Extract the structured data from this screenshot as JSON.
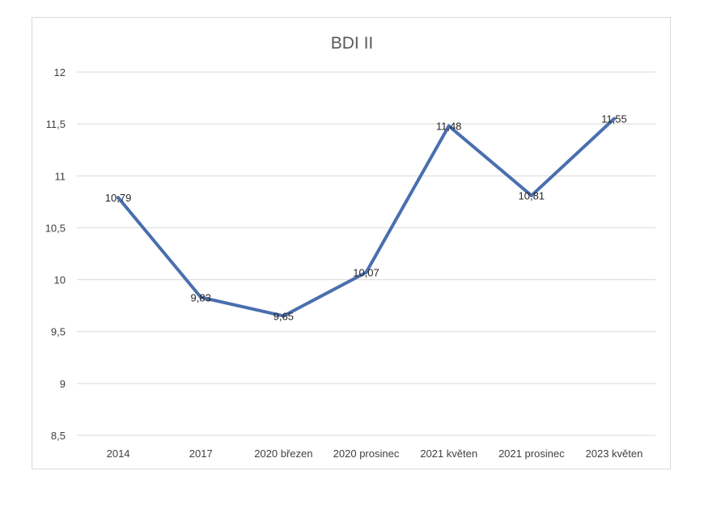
{
  "chart_data": {
    "type": "line",
    "title": "BDI II",
    "xlabel": "",
    "ylabel": "",
    "categories": [
      "2014",
      "2017",
      "2020 březen",
      "2020 prosinec",
      "2021 květen",
      "2021 prosinec",
      "2023 květen"
    ],
    "series": [
      {
        "values": [
          10.79,
          9.83,
          9.65,
          10.07,
          11.48,
          10.81,
          11.55
        ],
        "labels": [
          "10,79",
          "9,83",
          "9,65",
          "10,07",
          "11,48",
          "10,81",
          "11,55"
        ],
        "color": "#4a6fae"
      }
    ],
    "ylim": [
      8.5,
      12
    ],
    "yticks": [
      8.5,
      9,
      9.5,
      10,
      10.5,
      11,
      11.5,
      12
    ],
    "ytick_labels": [
      "8,5",
      "9",
      "9,5",
      "10",
      "10,5",
      "11",
      "11,5",
      "12"
    ],
    "grid": true,
    "legend": "none",
    "colors": {
      "line": "#4a6fae",
      "grid": "#d9d9d9",
      "frame": "#d9d9d9"
    }
  }
}
